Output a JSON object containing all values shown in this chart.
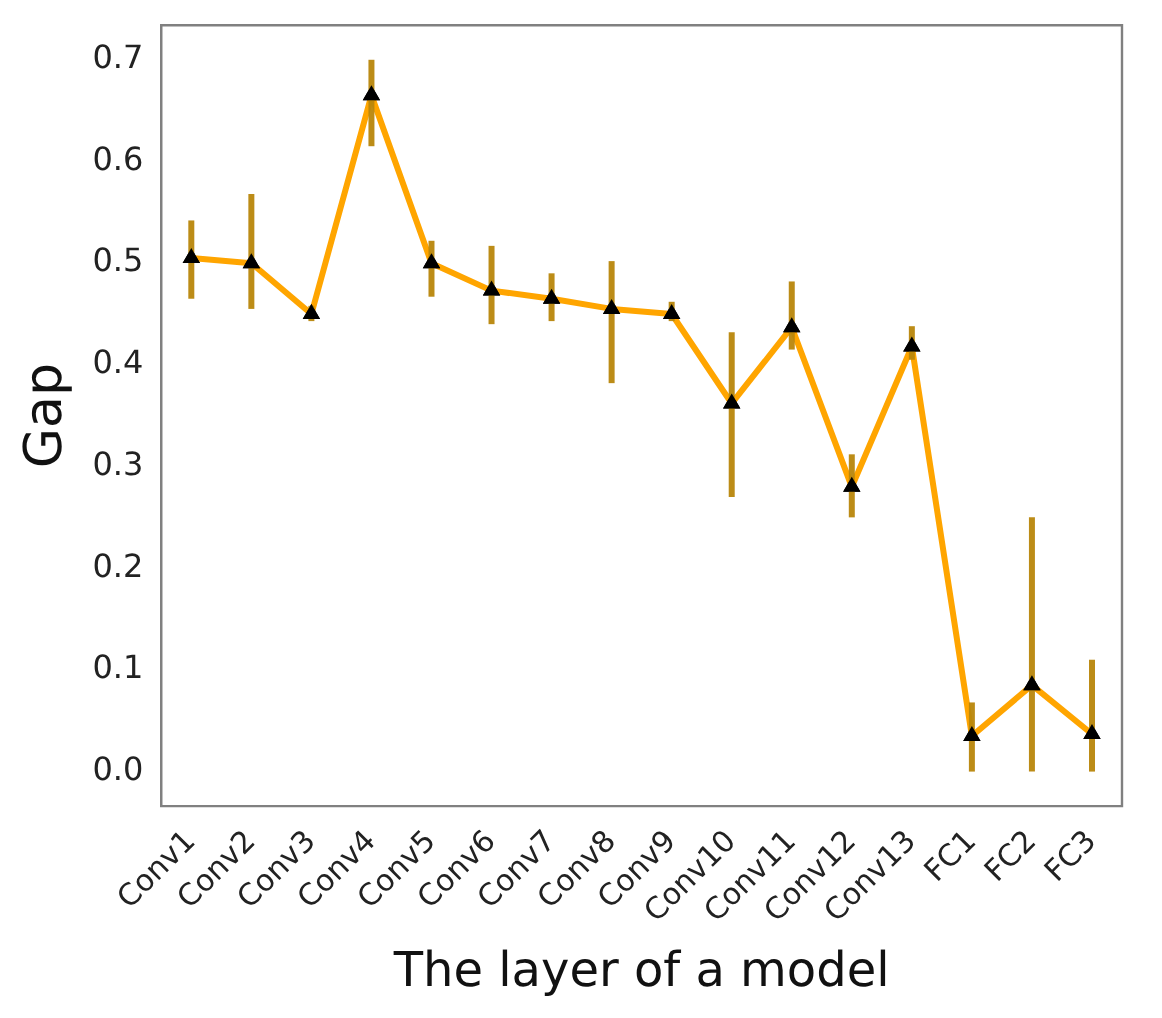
{
  "chart_data": {
    "type": "line",
    "xlabel": "The layer of a model",
    "ylabel": "Gap",
    "categories": [
      "Conv1",
      "Conv2",
      "Conv3",
      "Conv4",
      "Conv5",
      "Conv6",
      "Conv7",
      "Conv8",
      "Conv9",
      "Conv10",
      "Conv11",
      "Conv12",
      "Conv13",
      "FC1",
      "FC2",
      "FC3"
    ],
    "series": [
      {
        "color": "#ffa500",
        "values": [
          0.505,
          0.5,
          0.45,
          0.665,
          0.5,
          0.473,
          0.465,
          0.455,
          0.45,
          0.362,
          0.437,
          0.28,
          0.418,
          0.035,
          0.085,
          0.037
        ],
        "errors": [
          [
            0.465,
            0.542
          ],
          [
            0.455,
            0.568
          ],
          [
            0.443,
            0.458
          ],
          [
            0.615,
            0.7
          ],
          [
            0.467,
            0.522
          ],
          [
            0.44,
            0.517
          ],
          [
            0.443,
            0.49
          ],
          [
            0.382,
            0.502
          ],
          [
            0.443,
            0.462
          ],
          [
            0.27,
            0.432
          ],
          [
            0.415,
            0.482
          ],
          [
            0.25,
            0.312
          ],
          [
            0.405,
            0.438
          ],
          [
            0,
            0.068
          ],
          [
            0,
            0.25
          ],
          [
            0,
            0.11
          ]
        ]
      }
    ],
    "ylim": [
      -0.034,
      0.734
    ],
    "yticks": [
      {
        "value": 0,
        "label": "0.0"
      },
      0.1,
      0.2,
      0.3,
      0.4,
      0.5,
      0.6,
      0.7
    ],
    "grid": false,
    "legend": false,
    "marker": "triangle",
    "line_style": "solid"
  }
}
